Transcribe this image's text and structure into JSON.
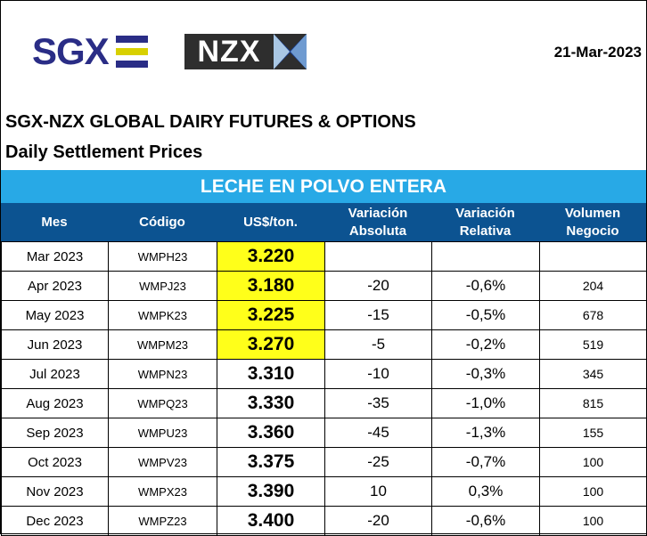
{
  "header": {
    "sgx_logo_text": "SGX",
    "nzx_logo_text": "NZX",
    "date": "21-Mar-2023",
    "title": "SGX-NZX GLOBAL DAIRY FUTURES & OPTIONS",
    "subtitle": "Daily Settlement Prices",
    "product": "LECHE EN POLVO ENTERA"
  },
  "colors": {
    "sgx_blue": "#2a2d86",
    "sgx_bar_blue": "#2a2d86",
    "sgx_bar_yellow": "#d8d000",
    "product_band": "#28a9e6",
    "header_row": "#0c5391",
    "highlight": "#ffff1a",
    "nzx_dark": "#2e2e2e",
    "nzx_x_light": "#a9c7e4",
    "nzx_x_dark": "#1b3f8f"
  },
  "columns": {
    "mes": "Mes",
    "codigo": "Código",
    "precio": "US$/ton.",
    "var_abs_1": "Variación",
    "var_abs_2": "Absoluta",
    "var_rel_1": "Variación",
    "var_rel_2": "Relativa",
    "vol_1": "Volumen",
    "vol_2": "Negocio"
  },
  "rows": [
    {
      "mes": "Mar 2023",
      "codigo": "WMPH23",
      "precio": "3.220",
      "var_abs": "",
      "var_rel": "",
      "volumen": "",
      "highlight": true
    },
    {
      "mes": "Apr 2023",
      "codigo": "WMPJ23",
      "precio": "3.180",
      "var_abs": "-20",
      "var_rel": "-0,6%",
      "volumen": "204",
      "highlight": true
    },
    {
      "mes": "May 2023",
      "codigo": "WMPK23",
      "precio": "3.225",
      "var_abs": "-15",
      "var_rel": "-0,5%",
      "volumen": "678",
      "highlight": true
    },
    {
      "mes": "Jun 2023",
      "codigo": "WMPM23",
      "precio": "3.270",
      "var_abs": "-5",
      "var_rel": "-0,2%",
      "volumen": "519",
      "highlight": true
    },
    {
      "mes": "Jul 2023",
      "codigo": "WMPN23",
      "precio": "3.310",
      "var_abs": "-10",
      "var_rel": "-0,3%",
      "volumen": "345",
      "highlight": false
    },
    {
      "mes": "Aug 2023",
      "codigo": "WMPQ23",
      "precio": "3.330",
      "var_abs": "-35",
      "var_rel": "-1,0%",
      "volumen": "815",
      "highlight": false
    },
    {
      "mes": "Sep 2023",
      "codigo": "WMPU23",
      "precio": "3.360",
      "var_abs": "-45",
      "var_rel": "-1,3%",
      "volumen": "155",
      "highlight": false
    },
    {
      "mes": "Oct 2023",
      "codigo": "WMPV23",
      "precio": "3.375",
      "var_abs": "-25",
      "var_rel": "-0,7%",
      "volumen": "100",
      "highlight": false
    },
    {
      "mes": "Nov 2023",
      "codigo": "WMPX23",
      "precio": "3.390",
      "var_abs": "10",
      "var_rel": "0,3%",
      "volumen": "100",
      "highlight": false
    },
    {
      "mes": "Dec 2023",
      "codigo": "WMPZ23",
      "precio": "3.400",
      "var_abs": "-20",
      "var_rel": "-0,6%",
      "volumen": "100",
      "highlight": false
    }
  ]
}
